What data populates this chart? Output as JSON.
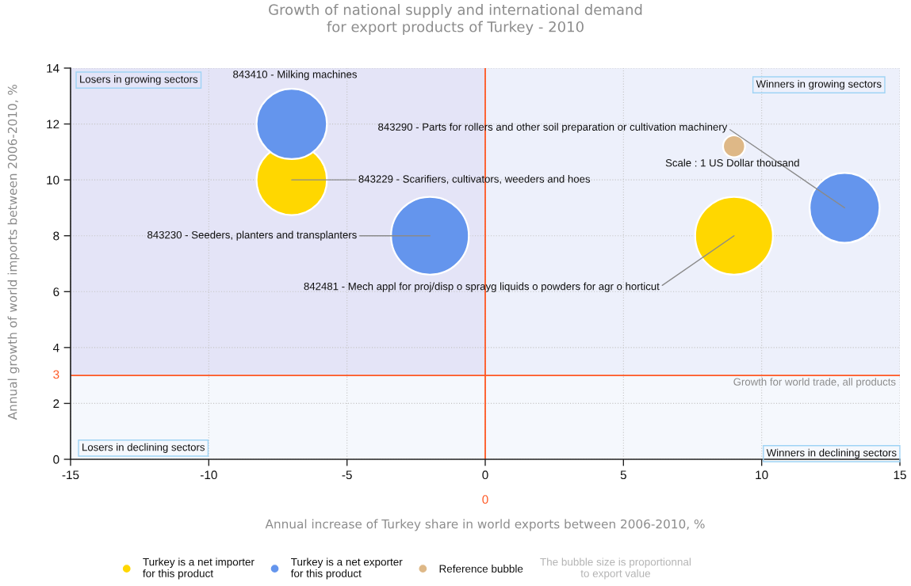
{
  "chart_data": {
    "type": "bubble",
    "title": "Growth of national supply and international demand\nfor export products of Turkey - 2010",
    "xlabel": "Annual increase of Turkey share in world exports between 2006-2010, %",
    "ylabel": "Annual growth of world imports between 2006-2010, %",
    "series": [
      {
        "name": "Turkey is a net importer\nfor this product",
        "color": "#ffd700",
        "x": [
          -7,
          9
        ],
        "values": [
          10,
          8
        ],
        "sizes": [
          0.82,
          1
        ]
      },
      {
        "name": "Turkey is a net exporter\nfor this product",
        "color": "#6495ed",
        "x": [
          -7,
          -2,
          13
        ],
        "values": [
          12,
          8,
          9
        ],
        "sizes": [
          0.82,
          1,
          0.81
        ]
      },
      {
        "name": "Reference bubble",
        "color": "#deb887",
        "x": [
          9
        ],
        "values": [
          11.2
        ],
        "sizes": [
          0.08
        ]
      }
    ],
    "xlim": [
      -15,
      15
    ],
    "ylim": [
      0,
      14
    ],
    "xticks": [
      -15,
      -10,
      -5,
      0,
      5,
      10,
      15
    ],
    "yticks": [
      0,
      2,
      4,
      6,
      8,
      10,
      12,
      14
    ],
    "ref_lines": [
      {
        "axis": "y",
        "value": 3,
        "label": "3",
        "color": "#ff5722"
      },
      {
        "axis": "x",
        "value": 0,
        "label": "0",
        "color": "#ff5722"
      }
    ],
    "bands": [
      {
        "axis": "y",
        "from": 3,
        "to": 14,
        "color": "#edf0fb"
      },
      {
        "axis": "x",
        "from": -15,
        "to": 0,
        "color": "#e4e4f7"
      },
      {
        "axis": "y",
        "from": 0,
        "to": 3,
        "color": "#f5f8fd"
      }
    ],
    "annotations": [
      {
        "text": "843229 - Scarifiers, cultivators, weeders and hoes",
        "x": -7,
        "y": 10
      },
      {
        "text": "843230 - Seeders, planters and transplanters",
        "x": -2,
        "y": 8
      },
      {
        "text": "843290 - Parts for rollers and other soil preparation or cultivation machinery",
        "x": 13,
        "y": 9
      },
      {
        "text": "842481 - Mech appl for proj/disp o sprayg liquids o powders for agr o horticut",
        "x": 9,
        "y": 8
      },
      {
        "text": "Scale : 1 US Dollar thousand",
        "x": 9,
        "y": 11.2
      },
      {
        "text": "Growth for world trade, all products",
        "x": 15,
        "y": 3
      },
      "843410 - Milking machines",
      "Losers in growing sectors",
      "Winners in growing sectors",
      "Losers in declining sectors",
      "Winners in declining sectors",
      "The bubble size is proportionnal\nto export value"
    ],
    "marker": "circle",
    "grid": true,
    "legend": "bottom"
  }
}
